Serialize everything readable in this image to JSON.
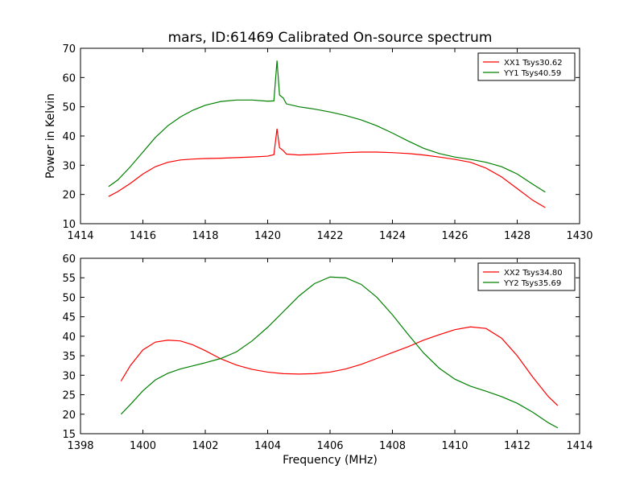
{
  "title": "mars, ID:61469 Calibrated On-source spectrum",
  "chart_data": [
    {
      "type": "line",
      "title": "mars, ID:61469 Calibrated On-source spectrum",
      "xlabel": "",
      "ylabel": "Power in Kelvin",
      "xlim": [
        1414,
        1430
      ],
      "ylim": [
        10,
        70
      ],
      "xticks": [
        1414,
        1416,
        1418,
        1420,
        1422,
        1424,
        1426,
        1428,
        1430
      ],
      "yticks": [
        10,
        20,
        30,
        40,
        50,
        60,
        70
      ],
      "grid": false,
      "legend_position": "top-right",
      "series": [
        {
          "name": "XX1 Tsys30.62",
          "color": "#ff0000",
          "points": [
            [
              1414.9,
              19.3
            ],
            [
              1415.2,
              21.0
            ],
            [
              1415.6,
              23.8
            ],
            [
              1416.0,
              27.0
            ],
            [
              1416.4,
              29.5
            ],
            [
              1416.8,
              31.0
            ],
            [
              1417.2,
              31.8
            ],
            [
              1417.6,
              32.1
            ],
            [
              1418.0,
              32.3
            ],
            [
              1418.5,
              32.4
            ],
            [
              1419.0,
              32.6
            ],
            [
              1419.5,
              32.8
            ],
            [
              1420.0,
              33.1
            ],
            [
              1420.2,
              33.6
            ],
            [
              1420.3,
              42.5
            ],
            [
              1420.38,
              36.0
            ],
            [
              1420.5,
              35.0
            ],
            [
              1420.6,
              33.8
            ],
            [
              1421.0,
              33.5
            ],
            [
              1421.5,
              33.7
            ],
            [
              1422.0,
              34.0
            ],
            [
              1422.5,
              34.3
            ],
            [
              1423.0,
              34.5
            ],
            [
              1423.5,
              34.5
            ],
            [
              1424.0,
              34.3
            ],
            [
              1424.5,
              34.0
            ],
            [
              1425.0,
              33.5
            ],
            [
              1425.5,
              32.8
            ],
            [
              1426.0,
              32.0
            ],
            [
              1426.5,
              31.0
            ],
            [
              1427.0,
              29.0
            ],
            [
              1427.5,
              26.0
            ],
            [
              1428.0,
              22.0
            ],
            [
              1428.5,
              18.0
            ],
            [
              1428.9,
              15.5
            ]
          ]
        },
        {
          "name": "YY1 Tsys40.59",
          "color": "#008000",
          "points": [
            [
              1414.9,
              22.7
            ],
            [
              1415.2,
              25.0
            ],
            [
              1415.6,
              29.5
            ],
            [
              1416.0,
              34.5
            ],
            [
              1416.4,
              39.5
            ],
            [
              1416.8,
              43.5
            ],
            [
              1417.2,
              46.5
            ],
            [
              1417.6,
              48.8
            ],
            [
              1418.0,
              50.5
            ],
            [
              1418.5,
              51.8
            ],
            [
              1419.0,
              52.3
            ],
            [
              1419.5,
              52.3
            ],
            [
              1420.0,
              51.9
            ],
            [
              1420.2,
              52.0
            ],
            [
              1420.3,
              65.8
            ],
            [
              1420.38,
              54.0
            ],
            [
              1420.5,
              53.0
            ],
            [
              1420.6,
              51.0
            ],
            [
              1421.0,
              50.0
            ],
            [
              1421.5,
              49.2
            ],
            [
              1422.0,
              48.2
            ],
            [
              1422.5,
              47.0
            ],
            [
              1423.0,
              45.5
            ],
            [
              1423.5,
              43.5
            ],
            [
              1424.0,
              41.0
            ],
            [
              1424.5,
              38.3
            ],
            [
              1425.0,
              35.8
            ],
            [
              1425.5,
              34.0
            ],
            [
              1426.0,
              32.8
            ],
            [
              1426.5,
              32.0
            ],
            [
              1427.0,
              31.0
            ],
            [
              1427.5,
              29.5
            ],
            [
              1428.0,
              27.0
            ],
            [
              1428.5,
              23.5
            ],
            [
              1428.9,
              20.8
            ]
          ]
        }
      ]
    },
    {
      "type": "line",
      "title": "",
      "xlabel": "Frequency (MHz)",
      "ylabel": "",
      "xlim": [
        1398,
        1414
      ],
      "ylim": [
        15,
        60
      ],
      "xticks": [
        1398,
        1400,
        1402,
        1404,
        1406,
        1408,
        1410,
        1412,
        1414
      ],
      "yticks": [
        15,
        20,
        25,
        30,
        35,
        40,
        45,
        50,
        55,
        60
      ],
      "grid": false,
      "legend_position": "top-right",
      "series": [
        {
          "name": "XX2 Tsys34.80",
          "color": "#ff0000",
          "points": [
            [
              1399.3,
              28.5
            ],
            [
              1399.6,
              32.5
            ],
            [
              1400.0,
              36.5
            ],
            [
              1400.4,
              38.5
            ],
            [
              1400.8,
              39.0
            ],
            [
              1401.2,
              38.8
            ],
            [
              1401.6,
              37.8
            ],
            [
              1402.0,
              36.3
            ],
            [
              1402.5,
              34.2
            ],
            [
              1403.0,
              32.6
            ],
            [
              1403.5,
              31.5
            ],
            [
              1404.0,
              30.8
            ],
            [
              1404.5,
              30.4
            ],
            [
              1405.0,
              30.3
            ],
            [
              1405.5,
              30.4
            ],
            [
              1406.0,
              30.8
            ],
            [
              1406.5,
              31.6
            ],
            [
              1407.0,
              32.8
            ],
            [
              1407.5,
              34.3
            ],
            [
              1408.0,
              35.8
            ],
            [
              1408.5,
              37.3
            ],
            [
              1409.0,
              39.0
            ],
            [
              1409.5,
              40.4
            ],
            [
              1410.0,
              41.7
            ],
            [
              1410.5,
              42.4
            ],
            [
              1411.0,
              42.0
            ],
            [
              1411.5,
              39.5
            ],
            [
              1412.0,
              35.0
            ],
            [
              1412.5,
              29.5
            ],
            [
              1413.0,
              24.5
            ],
            [
              1413.3,
              22.2
            ]
          ]
        },
        {
          "name": "YY2 Tsys35.69",
          "color": "#008000",
          "points": [
            [
              1399.3,
              20.0
            ],
            [
              1399.6,
              22.5
            ],
            [
              1400.0,
              26.0
            ],
            [
              1400.4,
              28.8
            ],
            [
              1400.8,
              30.5
            ],
            [
              1401.2,
              31.6
            ],
            [
              1401.6,
              32.4
            ],
            [
              1402.0,
              33.2
            ],
            [
              1402.5,
              34.3
            ],
            [
              1403.0,
              36.0
            ],
            [
              1403.5,
              38.8
            ],
            [
              1404.0,
              42.3
            ],
            [
              1404.5,
              46.3
            ],
            [
              1405.0,
              50.3
            ],
            [
              1405.5,
              53.5
            ],
            [
              1406.0,
              55.2
            ],
            [
              1406.5,
              55.0
            ],
            [
              1407.0,
              53.3
            ],
            [
              1407.5,
              50.0
            ],
            [
              1408.0,
              45.5
            ],
            [
              1408.5,
              40.5
            ],
            [
              1409.0,
              35.7
            ],
            [
              1409.5,
              31.8
            ],
            [
              1410.0,
              29.0
            ],
            [
              1410.5,
              27.2
            ],
            [
              1411.0,
              25.9
            ],
            [
              1411.5,
              24.5
            ],
            [
              1412.0,
              22.8
            ],
            [
              1412.5,
              20.5
            ],
            [
              1413.0,
              17.8
            ],
            [
              1413.3,
              16.5
            ]
          ]
        }
      ]
    }
  ]
}
